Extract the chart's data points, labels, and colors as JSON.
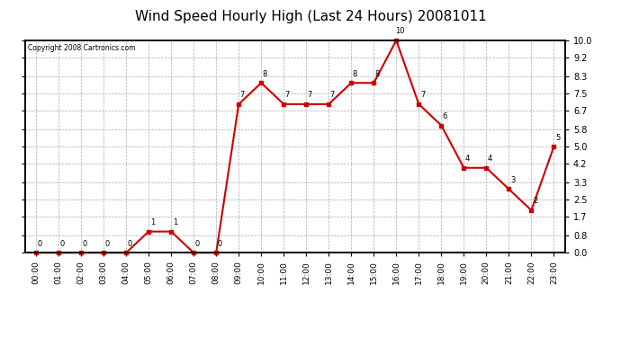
{
  "title": "Wind Speed Hourly High (Last 24 Hours) 20081011",
  "copyright": "Copyright 2008 Cartronics.com",
  "hours": [
    "00:00",
    "01:00",
    "02:00",
    "03:00",
    "04:00",
    "05:00",
    "06:00",
    "07:00",
    "08:00",
    "09:00",
    "10:00",
    "11:00",
    "12:00",
    "13:00",
    "14:00",
    "15:00",
    "16:00",
    "17:00",
    "18:00",
    "19:00",
    "20:00",
    "21:00",
    "22:00",
    "23:00"
  ],
  "values": [
    0,
    0,
    0,
    0,
    0,
    1,
    1,
    0,
    0,
    7,
    8,
    7,
    7,
    7,
    8,
    8,
    10,
    7,
    6,
    4,
    4,
    3,
    2,
    5
  ],
  "line_color": "#cc0000",
  "marker_color": "#cc0000",
  "bg_color": "#ffffff",
  "plot_bg_color": "#ffffff",
  "grid_color": "#aaaaaa",
  "title_fontsize": 11,
  "ylim": [
    0.0,
    10.0
  ],
  "yticks": [
    0.0,
    0.8,
    1.7,
    2.5,
    3.3,
    4.2,
    5.0,
    5.8,
    6.7,
    7.5,
    8.3,
    9.2,
    10.0
  ]
}
